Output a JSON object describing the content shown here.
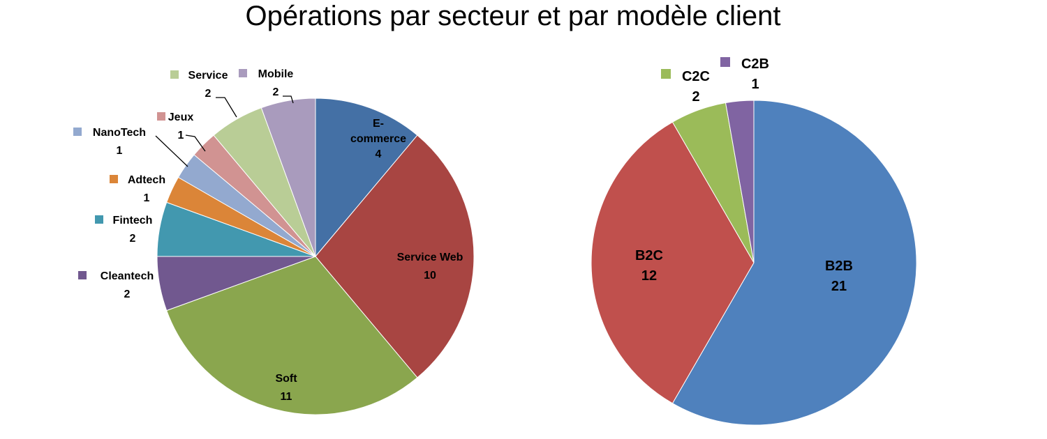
{
  "chart_data": [
    {
      "type": "pie",
      "title": "Opérations par secteur et par modèle client",
      "slices": [
        {
          "name": "E-commerce",
          "label_lines": [
            "E-",
            "commerce"
          ],
          "value": 4,
          "color": "#4470A5"
        },
        {
          "name": "Service Web",
          "value": 10,
          "color": "#A84542"
        },
        {
          "name": "Soft",
          "value": 11,
          "color": "#8AA64E"
        },
        {
          "name": "Cleantech",
          "value": 2,
          "color": "#71588F"
        },
        {
          "name": "Fintech",
          "value": 2,
          "color": "#4298AF"
        },
        {
          "name": "Adtech",
          "value": 1,
          "color": "#DB8538"
        },
        {
          "name": "NanoTech",
          "value": 1,
          "color": "#93A9CF"
        },
        {
          "name": "Jeux",
          "value": 1,
          "color": "#D19392"
        },
        {
          "name": "Service",
          "value": 2,
          "color": "#B9CD96"
        },
        {
          "name": "Mobile",
          "value": 2,
          "color": "#A99BBD"
        }
      ]
    },
    {
      "type": "pie",
      "slices": [
        {
          "name": "B2B",
          "value": 21,
          "color": "#4F81BD"
        },
        {
          "name": "B2C",
          "value": 12,
          "color": "#C0504D"
        },
        {
          "name": "C2C",
          "value": 2,
          "color": "#9BBB59"
        },
        {
          "name": "C2B",
          "value": 1,
          "color": "#8064A2"
        }
      ]
    }
  ]
}
